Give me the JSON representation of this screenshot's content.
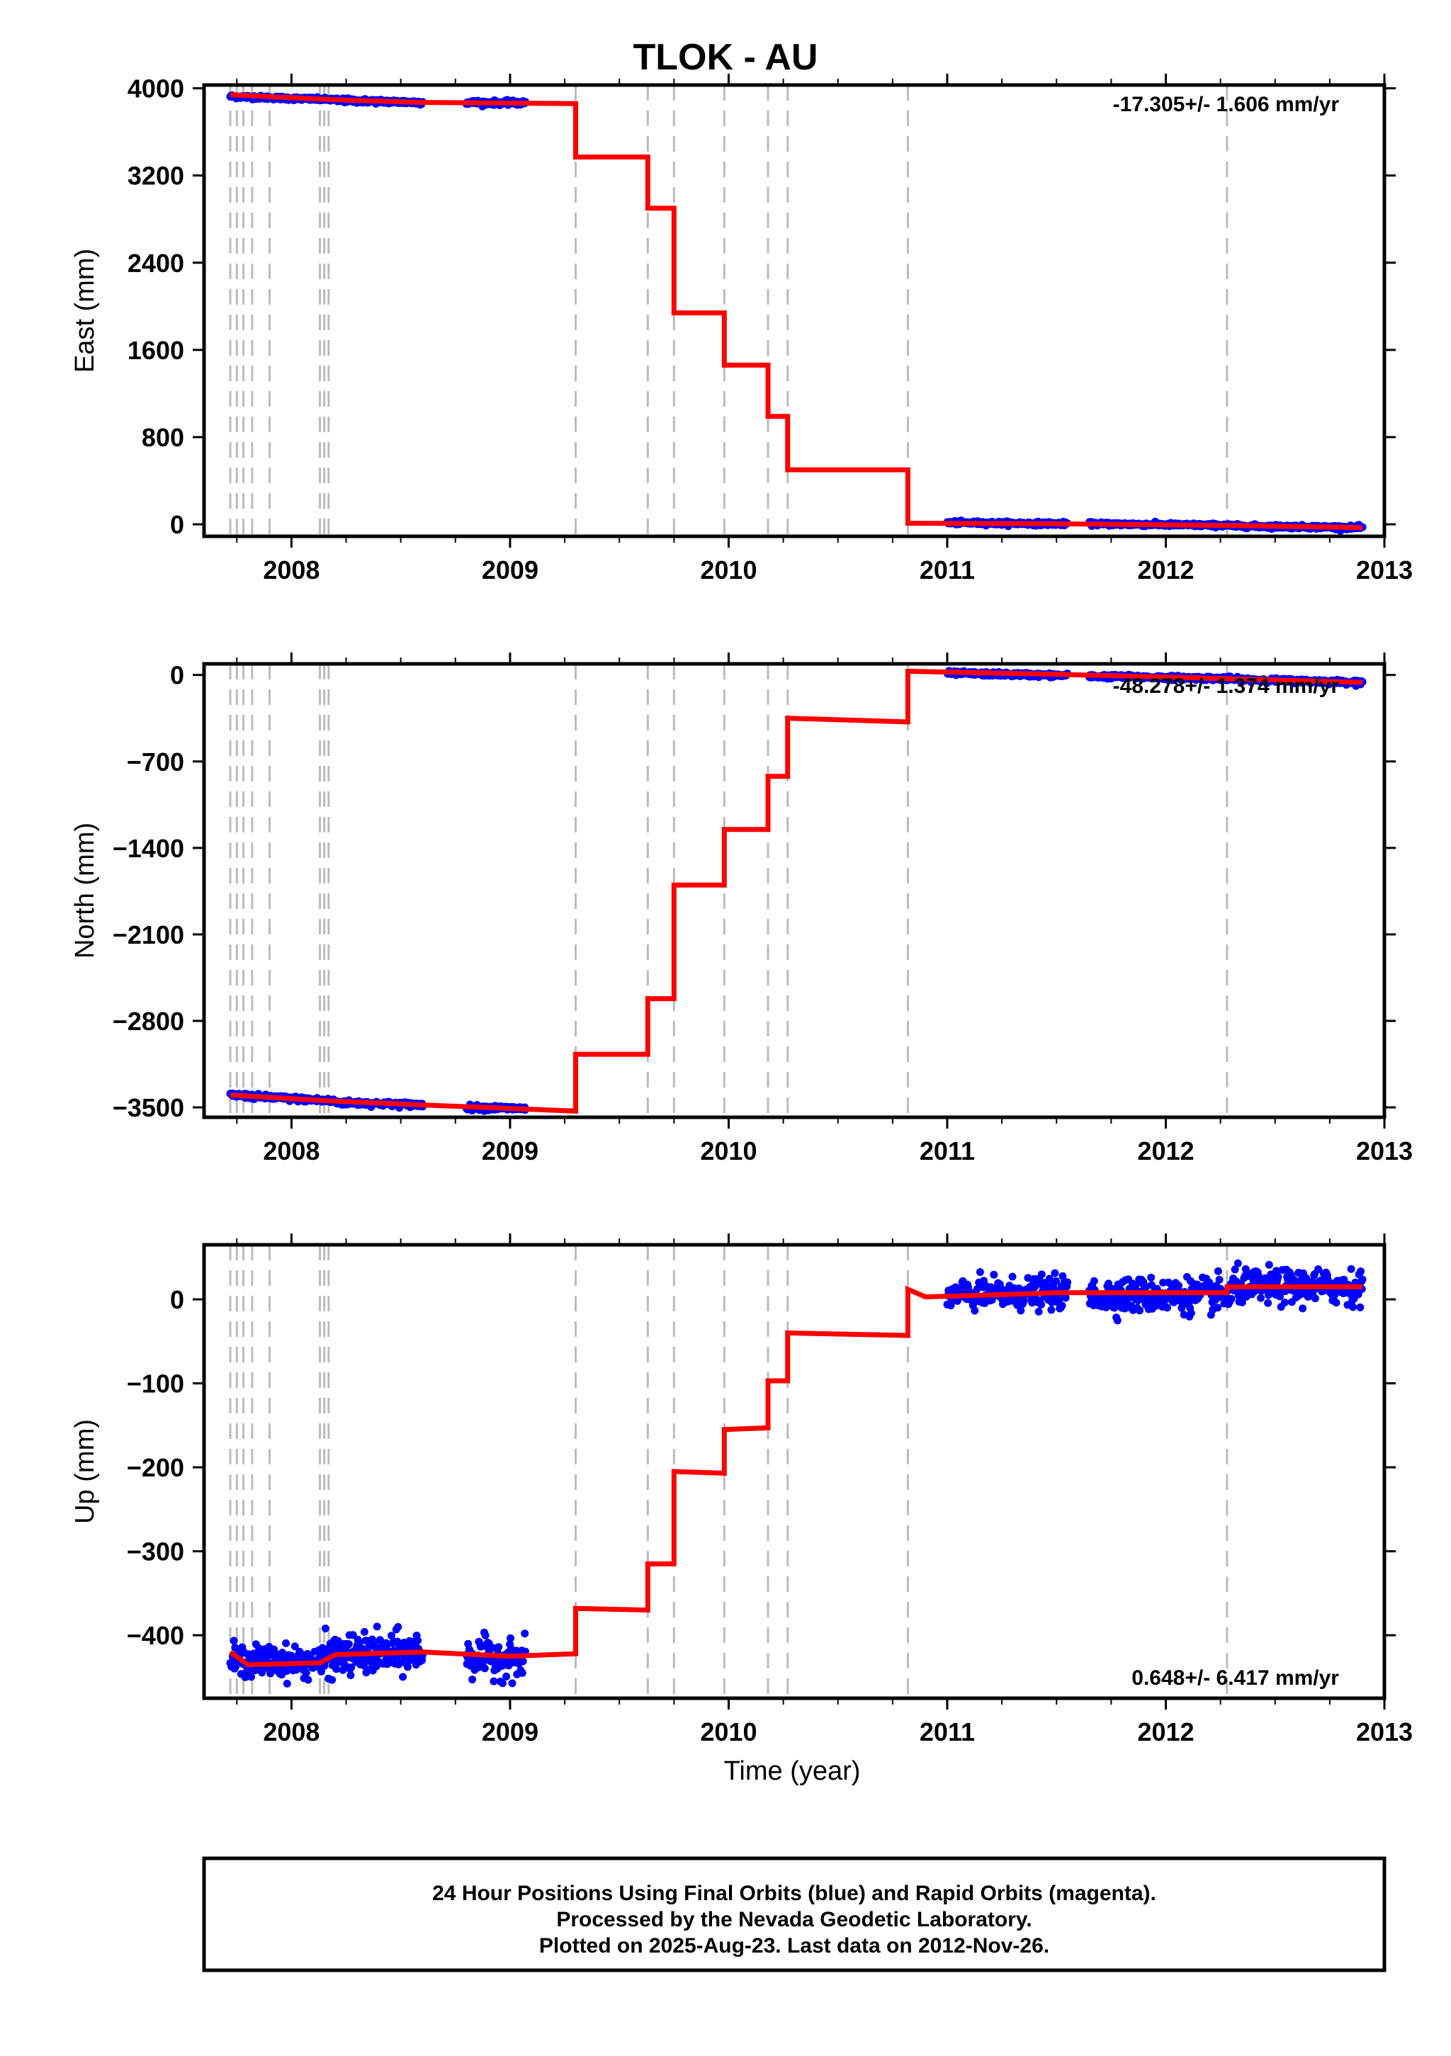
{
  "title": "TLOK - AU",
  "x_axis_label": "Time (year)",
  "footer": {
    "line1": "24 Hour Positions Using Final Orbits (blue) and Rapid Orbits (magenta).",
    "line2": "Processed by the Nevada Geodetic Laboratory.",
    "line3": "Plotted on 2025-Aug-23. Last data on 2012-Nov-26."
  },
  "colors": {
    "final_orbits": "#0000ff",
    "rapid_orbits": "#ff00ff",
    "model": "#ff0000",
    "offset_lines": "#bbbbbb"
  },
  "chart_data": [
    {
      "type": "scatter",
      "component": "east",
      "ylabel": "East (mm)",
      "rate_label": "-17.305+/- 1.606 mm/yr",
      "xlim": [
        2007.6,
        2013.0
      ],
      "ylim": [
        -110,
        4030
      ],
      "x_ticks": [
        2008,
        2009,
        2010,
        2011,
        2012,
        2013
      ],
      "y_ticks": [
        0,
        800,
        1600,
        2400,
        3200,
        4000
      ],
      "offset_epochs": [
        2007.72,
        2007.75,
        2007.78,
        2007.82,
        2007.9,
        2008.13,
        2008.15,
        2008.17,
        2009.3,
        2009.63,
        2009.75,
        2009.98,
        2010.18,
        2010.27,
        2010.82,
        2012.28
      ],
      "data_segments": [
        {
          "start": 2007.72,
          "end": 2008.2,
          "y_start": 3925,
          "y_end": 3895,
          "scatter": 8
        },
        {
          "start": 2008.2,
          "end": 2008.6,
          "y_start": 3890,
          "y_end": 3870,
          "scatter": 10
        },
        {
          "start": 2008.8,
          "end": 2009.07,
          "y_start": 3870,
          "y_end": 3865,
          "scatter": 10
        },
        {
          "start": 2011.0,
          "end": 2011.55,
          "y_start": 15,
          "y_end": 5,
          "scatter": 8
        },
        {
          "start": 2011.65,
          "end": 2012.3,
          "y_start": 5,
          "y_end": -10,
          "scatter": 8
        },
        {
          "start": 2012.3,
          "end": 2012.9,
          "y_start": -15,
          "y_end": -30,
          "scatter": 8
        }
      ],
      "model": [
        [
          2007.72,
          3940
        ],
        [
          2008.2,
          3895
        ],
        [
          2008.6,
          3870
        ],
        [
          2009.3,
          3860
        ],
        [
          2009.3,
          3370
        ],
        [
          2009.63,
          3370
        ],
        [
          2009.63,
          2900
        ],
        [
          2009.75,
          2900
        ],
        [
          2009.75,
          1940
        ],
        [
          2009.98,
          1940
        ],
        [
          2009.98,
          1460
        ],
        [
          2010.18,
          1460
        ],
        [
          2010.18,
          990
        ],
        [
          2010.27,
          990
        ],
        [
          2010.27,
          500
        ],
        [
          2010.82,
          500
        ],
        [
          2010.82,
          10
        ],
        [
          2011.5,
          5
        ],
        [
          2012.28,
          -10
        ],
        [
          2012.9,
          -30
        ]
      ]
    },
    {
      "type": "scatter",
      "component": "north",
      "ylabel": "North (mm)",
      "rate_label": "-48.278+/- 1.374 mm/yr",
      "xlim": [
        2007.6,
        2013.0
      ],
      "ylim": [
        -3580,
        90
      ],
      "x_ticks": [
        2008,
        2009,
        2010,
        2011,
        2012,
        2013
      ],
      "y_ticks": [
        0,
        -700,
        -1400,
        -2100,
        -2800,
        -3500
      ],
      "offset_epochs": [
        2007.72,
        2007.75,
        2007.78,
        2007.82,
        2007.9,
        2008.13,
        2008.15,
        2008.17,
        2009.3,
        2009.63,
        2009.75,
        2009.98,
        2010.18,
        2010.27,
        2010.82,
        2012.28
      ],
      "data_segments": [
        {
          "start": 2007.72,
          "end": 2008.2,
          "y_start": -3400,
          "y_end": -3450,
          "scatter": 10
        },
        {
          "start": 2008.2,
          "end": 2008.6,
          "y_start": -3460,
          "y_end": -3480,
          "scatter": 10
        },
        {
          "start": 2008.8,
          "end": 2009.07,
          "y_start": -3500,
          "y_end": -3510,
          "scatter": 10
        },
        {
          "start": 2011.0,
          "end": 2011.55,
          "y_start": 15,
          "y_end": -5,
          "scatter": 8
        },
        {
          "start": 2011.65,
          "end": 2012.3,
          "y_start": -10,
          "y_end": -30,
          "scatter": 8
        },
        {
          "start": 2012.3,
          "end": 2012.9,
          "y_start": -35,
          "y_end": -60,
          "scatter": 8
        }
      ],
      "model": [
        [
          2007.72,
          -3400
        ],
        [
          2008.2,
          -3450
        ],
        [
          2008.6,
          -3480
        ],
        [
          2009.3,
          -3530
        ],
        [
          2009.3,
          -3070
        ],
        [
          2009.63,
          -3070
        ],
        [
          2009.63,
          -2620
        ],
        [
          2009.75,
          -2620
        ],
        [
          2009.75,
          -1700
        ],
        [
          2009.98,
          -1700
        ],
        [
          2009.98,
          -1250
        ],
        [
          2010.18,
          -1250
        ],
        [
          2010.18,
          -820
        ],
        [
          2010.27,
          -820
        ],
        [
          2010.27,
          -350
        ],
        [
          2010.82,
          -380
        ],
        [
          2010.82,
          30
        ],
        [
          2011.5,
          5
        ],
        [
          2012.28,
          -30
        ],
        [
          2012.9,
          -60
        ]
      ]
    },
    {
      "type": "scatter",
      "component": "up",
      "ylabel": "Up (mm)",
      "rate_label": "0.648+/- 6.417 mm/yr",
      "xlim": [
        2007.6,
        2013.0
      ],
      "ylim": [
        -475,
        65
      ],
      "x_ticks": [
        2008,
        2009,
        2010,
        2011,
        2012,
        2013
      ],
      "y_ticks": [
        0,
        -100,
        -200,
        -300,
        -400
      ],
      "offset_epochs": [
        2007.72,
        2007.75,
        2007.78,
        2007.82,
        2007.9,
        2008.13,
        2008.15,
        2008.17,
        2009.3,
        2009.63,
        2009.75,
        2009.98,
        2010.18,
        2010.27,
        2010.82,
        2012.28
      ],
      "data_segments": [
        {
          "start": 2007.72,
          "end": 2008.15,
          "y_start": -430,
          "y_end": -432,
          "scatter": 9
        },
        {
          "start": 2008.15,
          "end": 2008.6,
          "y_start": -425,
          "y_end": -420,
          "scatter": 12
        },
        {
          "start": 2008.8,
          "end": 2009.07,
          "y_start": -425,
          "y_end": -430,
          "scatter": 11
        },
        {
          "start": 2011.0,
          "end": 2011.55,
          "y_start": 5,
          "y_end": 8,
          "scatter": 9
        },
        {
          "start": 2011.65,
          "end": 2012.3,
          "y_start": 5,
          "y_end": 5,
          "scatter": 10
        },
        {
          "start": 2012.3,
          "end": 2012.9,
          "y_start": 15,
          "y_end": 15,
          "scatter": 10
        }
      ],
      "model": [
        [
          2007.72,
          -420
        ],
        [
          2007.8,
          -435
        ],
        [
          2008.13,
          -433
        ],
        [
          2008.2,
          -423
        ],
        [
          2008.6,
          -420
        ],
        [
          2009.0,
          -425
        ],
        [
          2009.3,
          -422
        ],
        [
          2009.3,
          -368
        ],
        [
          2009.63,
          -370
        ],
        [
          2009.63,
          -315
        ],
        [
          2009.75,
          -315
        ],
        [
          2009.75,
          -205
        ],
        [
          2009.98,
          -207
        ],
        [
          2009.98,
          -155
        ],
        [
          2010.18,
          -153
        ],
        [
          2010.18,
          -97
        ],
        [
          2010.27,
          -97
        ],
        [
          2010.27,
          -40
        ],
        [
          2010.82,
          -43
        ],
        [
          2010.82,
          12
        ],
        [
          2010.9,
          3
        ],
        [
          2011.3,
          6
        ],
        [
          2011.5,
          8
        ],
        [
          2012.28,
          8
        ],
        [
          2012.28,
          15
        ],
        [
          2012.9,
          15
        ]
      ]
    }
  ]
}
